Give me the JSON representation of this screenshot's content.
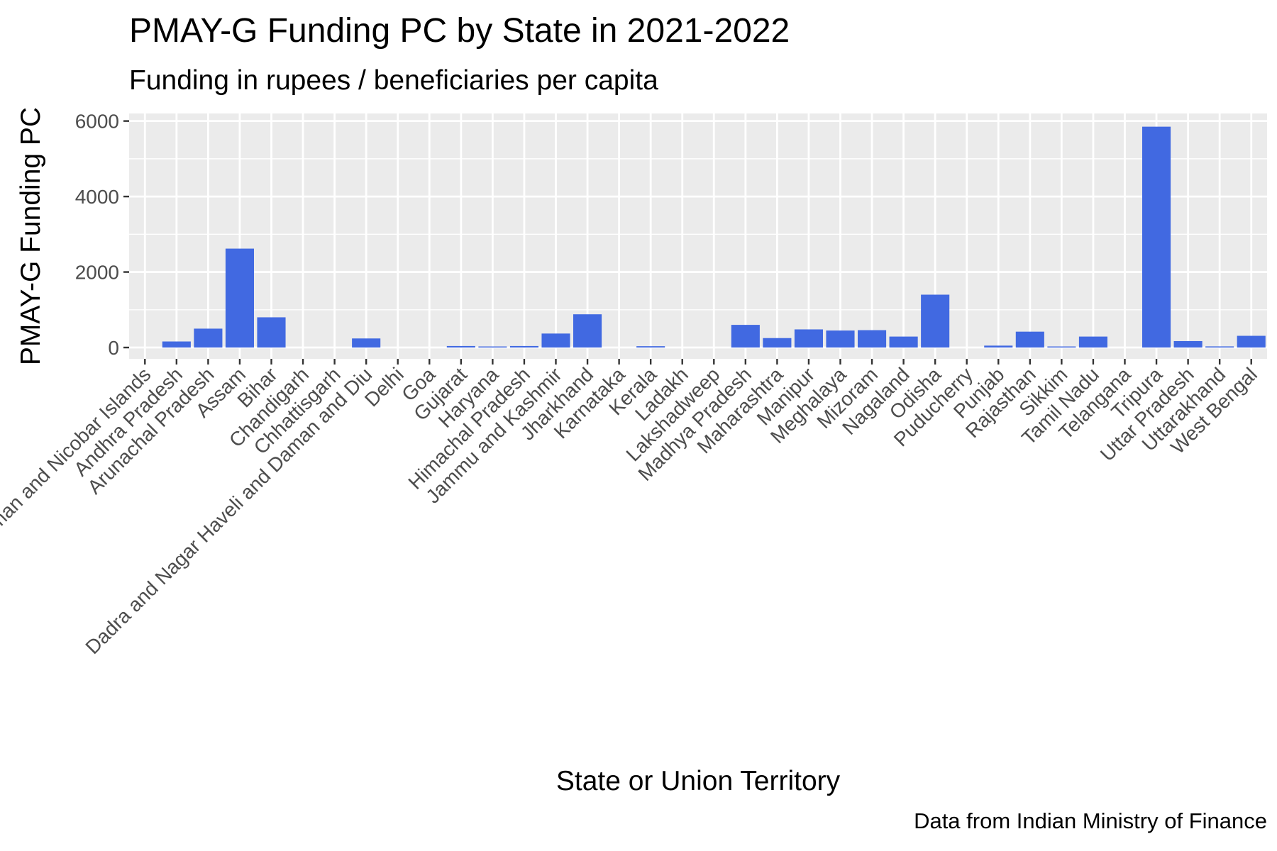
{
  "chart_data": {
    "type": "bar",
    "title": "PMAY-G Funding PC by State in 2021-2022",
    "subtitle": "Funding in rupees / beneficiaries per capita",
    "xlabel": "State or Union Territory",
    "ylabel": "PMAY-G Funding PC",
    "caption": "Data from Indian Ministry of Finance",
    "ylim": [
      -300,
      6200
    ],
    "y_ticks": [
      0,
      2000,
      4000,
      6000
    ],
    "grid": true,
    "bar_color": "#4169e1",
    "panel_color": "#ebebeb",
    "categories": [
      "Andaman and Nicobar Islands",
      "Andhra Pradesh",
      "Arunachal Pradesh",
      "Assam",
      "Bihar",
      "Chandigarh",
      "Chhattisgarh",
      "Dadra and Nagar Haveli and Daman and Diu",
      "Delhi",
      "Goa",
      "Gujarat",
      "Haryana",
      "Himachal Pradesh",
      "Jammu and Kashmir",
      "Jharkhand",
      "Karnataka",
      "Kerala",
      "Ladakh",
      "Lakshadweep",
      "Madhya Pradesh",
      "Maharashtra",
      "Manipur",
      "Meghalaya",
      "Mizoram",
      "Nagaland",
      "Odisha",
      "Puducherry",
      "Punjab",
      "Rajasthan",
      "Sikkim",
      "Tamil Nadu",
      "Telangana",
      "Tripura",
      "Uttar Pradesh",
      "Uttarakhand",
      "West Bengal"
    ],
    "values": [
      0,
      160,
      500,
      2620,
      800,
      0,
      0,
      240,
      0,
      0,
      40,
      25,
      40,
      370,
      880,
      0,
      35,
      0,
      0,
      600,
      250,
      480,
      450,
      460,
      290,
      1400,
      0,
      50,
      420,
      15,
      290,
      0,
      5850,
      170,
      30,
      310
    ]
  }
}
